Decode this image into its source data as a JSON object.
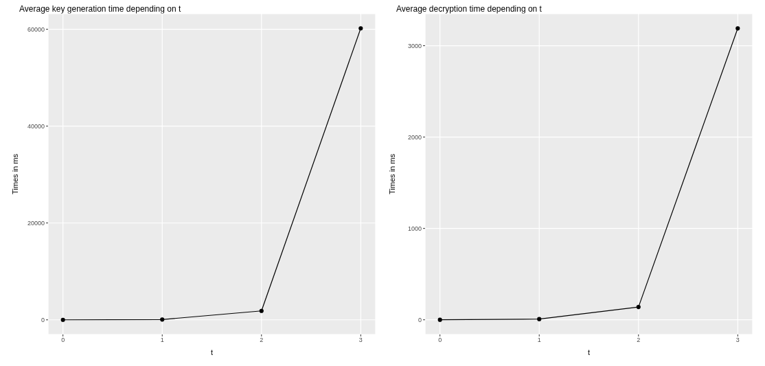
{
  "chart_data": [
    {
      "type": "line",
      "title": "Average key generation time depending on t",
      "xlabel": "t",
      "ylabel": "Times in ms",
      "x": [
        0,
        1,
        2,
        3
      ],
      "xlim": [
        -0.15,
        3.15
      ],
      "xticks": [
        0,
        1,
        2,
        3
      ],
      "ylim": [
        -3010,
        63210
      ],
      "yticks": [
        0,
        20000,
        40000,
        60000
      ],
      "grid": true,
      "marker": "circle",
      "line_style": "solid",
      "series": [
        {
          "color": "#000000",
          "values": [
            0,
            70,
            1850,
            60200
          ]
        }
      ]
    },
    {
      "type": "line",
      "title": "Average decryption time depending on t",
      "xlabel": "t",
      "ylabel": "Times in ms",
      "x": [
        0,
        1,
        2,
        3
      ],
      "xlim": [
        -0.15,
        3.15
      ],
      "xticks": [
        0,
        1,
        2,
        3
      ],
      "ylim": [
        -160,
        3350
      ],
      "yticks": [
        0,
        1000,
        2000,
        3000
      ],
      "grid": true,
      "marker": "circle",
      "line_style": "solid",
      "series": [
        {
          "color": "#000000",
          "values": [
            0,
            8,
            140,
            3190
          ]
        }
      ]
    }
  ]
}
